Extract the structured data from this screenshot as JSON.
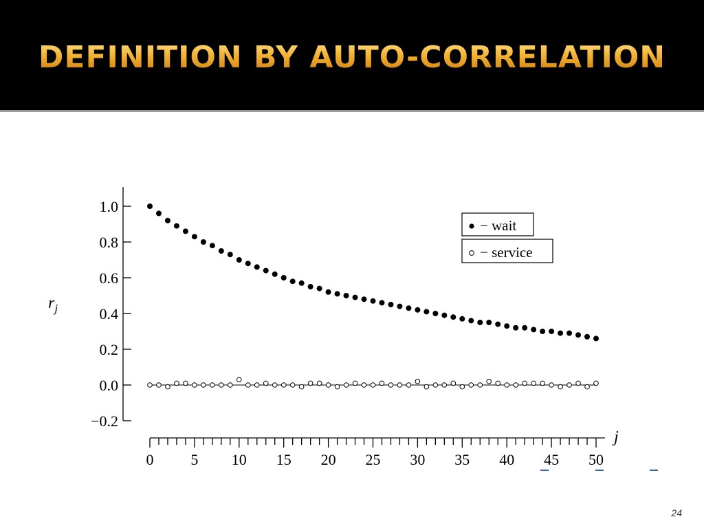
{
  "slide": {
    "title": "DEFINITION BY AUTO-CORRELATION",
    "page_number": "24"
  },
  "chart_data": {
    "type": "scatter",
    "xlabel": "j",
    "ylabel": "r_j",
    "xlim": [
      0,
      50
    ],
    "ylim": [
      -0.2,
      1.1
    ],
    "x_ticks": [
      0,
      5,
      10,
      15,
      20,
      25,
      30,
      35,
      40,
      45,
      50
    ],
    "y_ticks": [
      -0.2,
      0.0,
      0.2,
      0.4,
      0.6,
      0.8,
      1.0
    ],
    "y_tick_labels": [
      "−0.2",
      "0.0",
      "0.2",
      "0.4",
      "0.6",
      "0.8",
      "1.0"
    ],
    "x": [
      0,
      1,
      2,
      3,
      4,
      5,
      6,
      7,
      8,
      9,
      10,
      11,
      12,
      13,
      14,
      15,
      16,
      17,
      18,
      19,
      20,
      21,
      22,
      23,
      24,
      25,
      26,
      27,
      28,
      29,
      30,
      31,
      32,
      33,
      34,
      35,
      36,
      37,
      38,
      39,
      40,
      41,
      42,
      43,
      44,
      45,
      46,
      47,
      48,
      49,
      50
    ],
    "series": [
      {
        "name": "wait",
        "marker": "filled-circle",
        "values": [
          1.0,
          0.96,
          0.92,
          0.89,
          0.86,
          0.83,
          0.8,
          0.78,
          0.75,
          0.73,
          0.7,
          0.68,
          0.66,
          0.64,
          0.62,
          0.6,
          0.58,
          0.57,
          0.55,
          0.54,
          0.52,
          0.51,
          0.5,
          0.49,
          0.48,
          0.47,
          0.46,
          0.45,
          0.44,
          0.43,
          0.42,
          0.41,
          0.4,
          0.39,
          0.38,
          0.37,
          0.36,
          0.35,
          0.35,
          0.34,
          0.33,
          0.32,
          0.32,
          0.31,
          0.3,
          0.3,
          0.29,
          0.29,
          0.28,
          0.27,
          0.26
        ]
      },
      {
        "name": "service",
        "marker": "open-circle",
        "values": [
          0.0,
          0.0,
          -0.01,
          0.01,
          0.01,
          0.0,
          0.0,
          0.0,
          0.0,
          0.0,
          0.03,
          0.0,
          0.0,
          0.01,
          0.0,
          0.0,
          0.0,
          -0.01,
          0.01,
          0.01,
          0.0,
          -0.01,
          0.0,
          0.01,
          0.0,
          0.0,
          0.01,
          0.0,
          0.0,
          0.0,
          0.02,
          -0.01,
          0.0,
          0.0,
          0.01,
          -0.01,
          0.0,
          0.0,
          0.02,
          0.01,
          0.0,
          0.0,
          0.01,
          0.01,
          0.01,
          0.0,
          -0.01,
          0.0,
          0.01,
          -0.01,
          0.01
        ]
      }
    ],
    "zero_line": true,
    "legend": {
      "placement": "top-right",
      "entries": [
        "− wait",
        "− service"
      ]
    }
  }
}
